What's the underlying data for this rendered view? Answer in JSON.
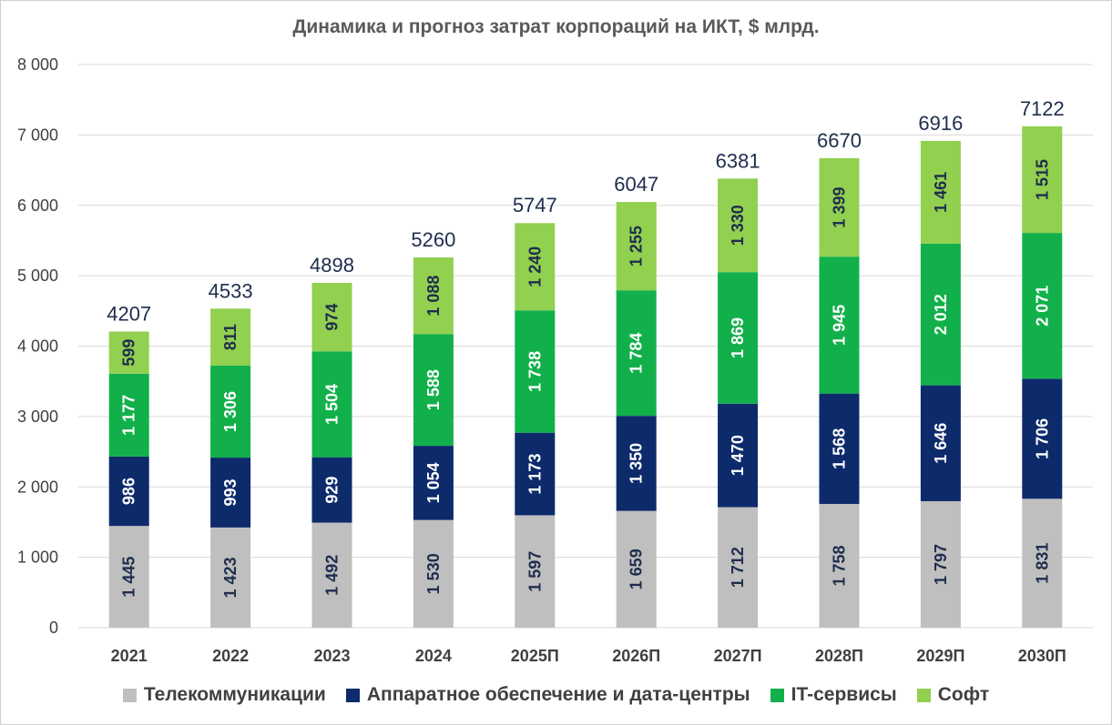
{
  "chart_data": {
    "type": "bar",
    "stacked": true,
    "title": "Динамика и прогноз затрат корпораций на ИКТ,  $ млрд.",
    "xlabel": "",
    "ylabel": "",
    "ylim": [
      0,
      8000
    ],
    "y_ticks": [
      "0",
      "1 000",
      "2 000",
      "3 000",
      "4 000",
      "5 000",
      "6 000",
      "7 000",
      "8 000"
    ],
    "y_tick_values": [
      0,
      1000,
      2000,
      3000,
      4000,
      5000,
      6000,
      7000,
      8000
    ],
    "grid": true,
    "legend_position": "bottom",
    "categories": [
      "2021",
      "2022",
      "2023",
      "2024",
      "2025П",
      "2026П",
      "2027П",
      "2028П",
      "2029П",
      "2030П"
    ],
    "totals": [
      4207,
      4533,
      4898,
      5260,
      5747,
      6047,
      6381,
      6670,
      6916,
      7122
    ],
    "total_labels": [
      "4207",
      "4533",
      "4898",
      "5260",
      "5747",
      "6047",
      "6381",
      "6670",
      "6916",
      "7122"
    ],
    "series": [
      {
        "name": "Телекоммуникации",
        "color": "#bfbfbf",
        "label_color": "#1f2d4d",
        "values": [
          1445,
          1423,
          1492,
          1530,
          1597,
          1659,
          1712,
          1758,
          1797,
          1831
        ],
        "labels": [
          "1 445",
          "1 423",
          "1 492",
          "1 530",
          "1 597",
          "1 659",
          "1 712",
          "1 758",
          "1 797",
          "1 831"
        ]
      },
      {
        "name": "Аппаратное обеспечение и дата-центры",
        "color": "#0d2a6b",
        "label_color": "#ffffff",
        "values": [
          986,
          993,
          929,
          1054,
          1173,
          1350,
          1470,
          1568,
          1646,
          1706
        ],
        "labels": [
          "986",
          "993",
          "929",
          "1 054",
          "1 173",
          "1 350",
          "1 470",
          "1 568",
          "1 646",
          "1 706"
        ]
      },
      {
        "name": "IT-сервисы",
        "color": "#12b04b",
        "label_color": "#ffffff",
        "values": [
          1177,
          1306,
          1504,
          1588,
          1738,
          1784,
          1869,
          1945,
          2012,
          2071
        ],
        "labels": [
          "1 177",
          "1 306",
          "1 504",
          "1 588",
          "1 738",
          "1 784",
          "1 869",
          "1 945",
          "2 012",
          "2 071"
        ]
      },
      {
        "name": "Софт",
        "color": "#92d050",
        "label_color": "#1f2d4d",
        "values": [
          599,
          811,
          974,
          1088,
          1240,
          1255,
          1330,
          1399,
          1461,
          1515
        ],
        "labels": [
          "599",
          "811",
          "974",
          "1 088",
          "1 240",
          "1 255",
          "1 330",
          "1 399",
          "1 461",
          "1 515"
        ]
      }
    ]
  }
}
